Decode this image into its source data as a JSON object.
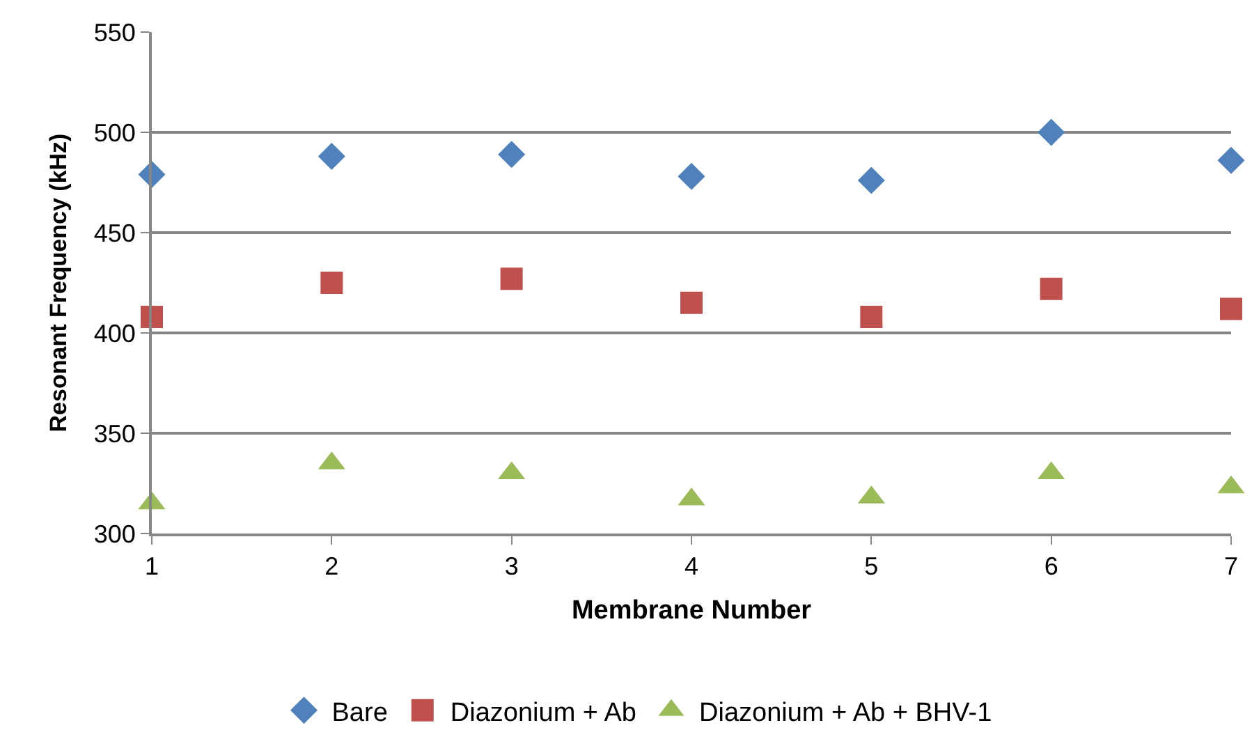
{
  "chart_data": {
    "type": "scatter",
    "xlabel": "Membrane Number",
    "ylabel": "Resonant Frequency (kHz)",
    "x": [
      1,
      2,
      3,
      4,
      5,
      6,
      7
    ],
    "series": [
      {
        "name": "Bare",
        "color": "#4f81bd",
        "marker": "diamond",
        "values": [
          479,
          488,
          489,
          478,
          476,
          500,
          486
        ]
      },
      {
        "name": "Diazonium + Ab",
        "color": "#c0504d",
        "marker": "square",
        "values": [
          408,
          425,
          427,
          415,
          408,
          422,
          412
        ]
      },
      {
        "name": "Diazonium + Ab + BHV-1",
        "color": "#9bbb59",
        "marker": "triangle",
        "values": [
          315,
          335,
          330,
          317,
          318,
          330,
          323
        ]
      }
    ],
    "xlim": [
      1,
      7
    ],
    "xticks": [
      1,
      2,
      3,
      4,
      5,
      6,
      7
    ],
    "ylim": [
      300,
      550
    ],
    "yticks": [
      300,
      350,
      400,
      450,
      500,
      550
    ],
    "grid": "y",
    "legend": "bottom"
  }
}
